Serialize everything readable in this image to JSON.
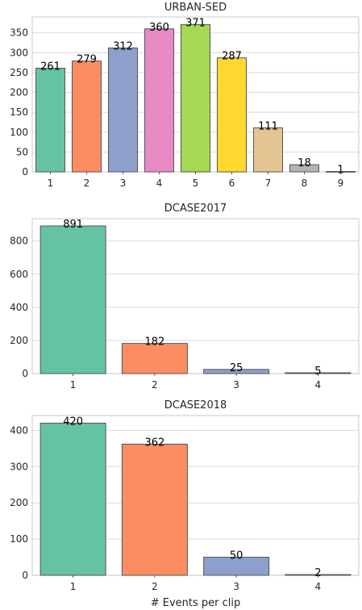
{
  "chart_data": [
    {
      "type": "bar",
      "title": "URBAN-SED",
      "categories": [
        "1",
        "2",
        "3",
        "4",
        "5",
        "6",
        "7",
        "8",
        "9"
      ],
      "values": [
        261,
        279,
        312,
        360,
        371,
        287,
        111,
        18,
        1
      ],
      "ylim": [
        0,
        390
      ],
      "yticks": [
        0,
        50,
        100,
        150,
        200,
        250,
        300,
        350
      ],
      "colors": [
        "#66c2a5",
        "#fc8d62",
        "#8da0cb",
        "#e78ac3",
        "#a6d854",
        "#ffd92f",
        "#e5c494",
        "#b3b3b3",
        "#66c2a5"
      ],
      "grid": true,
      "xlabel": ""
    },
    {
      "type": "bar",
      "title": "DCASE2017",
      "categories": [
        "1",
        "2",
        "3",
        "4"
      ],
      "values": [
        891,
        182,
        25,
        5
      ],
      "ylim": [
        0,
        935
      ],
      "yticks": [
        0,
        200,
        400,
        600,
        800
      ],
      "colors": [
        "#66c2a5",
        "#fc8d62",
        "#8da0cb",
        "#e78ac3"
      ],
      "grid": true,
      "xlabel": ""
    },
    {
      "type": "bar",
      "title": "DCASE2018",
      "categories": [
        "1",
        "2",
        "3",
        "4"
      ],
      "values": [
        420,
        362,
        50,
        2
      ],
      "ylim": [
        0,
        441
      ],
      "yticks": [
        0,
        100,
        200,
        300,
        400
      ],
      "colors": [
        "#66c2a5",
        "#fc8d62",
        "#8da0cb",
        "#e78ac3"
      ],
      "grid": true,
      "xlabel": "# Events per clip"
    }
  ]
}
